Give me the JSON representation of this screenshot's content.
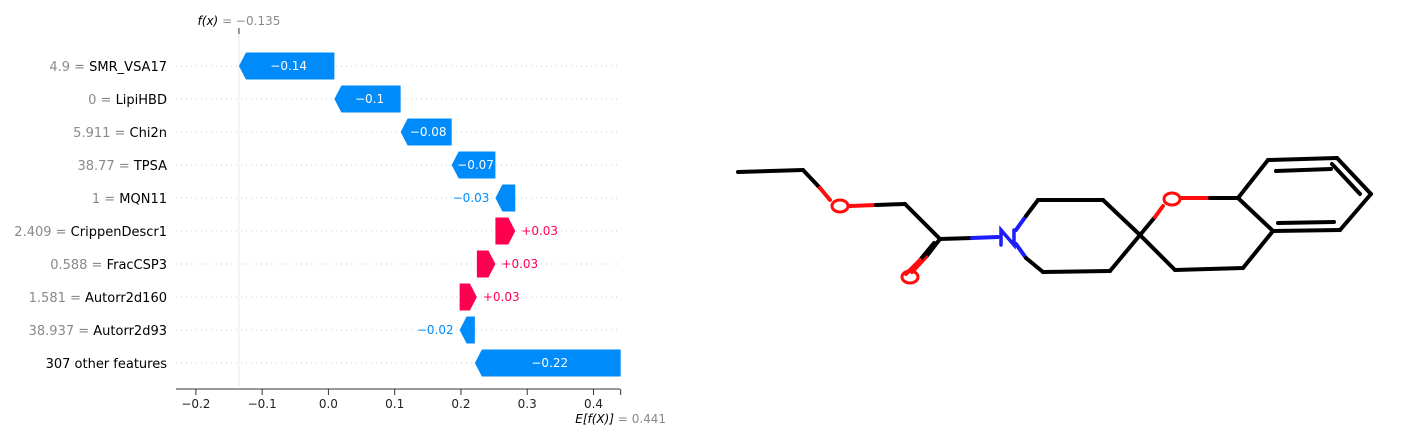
{
  "chart_data": {
    "type": "waterfall",
    "fx_label": "f(x)",
    "fx_value": "−0.135",
    "ex_label": "E[f(X)]",
    "ex_value": "0.441",
    "xlim": [
      -0.23,
      0.44
    ],
    "xticks": [
      -0.2,
      -0.1,
      0.0,
      0.1,
      0.2,
      0.3,
      0.4
    ],
    "xtick_labels": [
      "−0.2",
      "−0.1",
      "0.0",
      "0.1",
      "0.2",
      "0.3",
      "0.4"
    ],
    "base_value": 0.441,
    "output_value": -0.135,
    "features": [
      {
        "value": "4.9",
        "name": "SMR_VSA17",
        "start": -0.135,
        "end": 0.009,
        "label": "−0.14"
      },
      {
        "value": "0",
        "name": "LipiHBD",
        "start": 0.009,
        "end": 0.109,
        "label": "−0.1"
      },
      {
        "value": "5.911",
        "name": "Chi2n",
        "start": 0.109,
        "end": 0.186,
        "label": "−0.08"
      },
      {
        "value": "38.77",
        "name": "TPSA",
        "start": 0.186,
        "end": 0.252,
        "label": "−0.07"
      },
      {
        "value": "1",
        "name": "MQN11",
        "start": 0.252,
        "end": 0.282,
        "label": "−0.03"
      },
      {
        "value": "2.409",
        "name": "CrippenDescr1",
        "start": 0.282,
        "end": 0.252,
        "label": "+0.03"
      },
      {
        "value": "0.588",
        "name": "FracCSP3",
        "start": 0.252,
        "end": 0.224,
        "label": "+0.03"
      },
      {
        "value": "1.581",
        "name": "Autorr2d160",
        "start": 0.224,
        "end": 0.198,
        "label": "+0.03"
      },
      {
        "value": "38.937",
        "name": "Autorr2d93",
        "start": 0.198,
        "end": 0.221,
        "label": "−0.02"
      },
      {
        "value": "",
        "name": "307 other features",
        "start": 0.221,
        "end": 0.441,
        "label": "−0.22"
      }
    ],
    "colors": {
      "negative": "#008bfb",
      "positive": "#ff0051",
      "gray": "#8a8a8a"
    }
  }
}
